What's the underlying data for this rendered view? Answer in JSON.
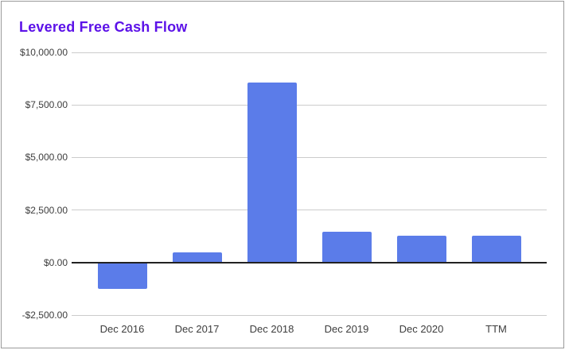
{
  "window": {
    "frame_border_color": "#9a9a9a",
    "background_color": "#ffffff"
  },
  "chart_data": {
    "type": "bar",
    "title": "Levered Free Cash Flow",
    "title_color": "#5c12e8",
    "xlabel": "",
    "ylabel": "",
    "categories": [
      "Dec 2016",
      "Dec 2017",
      "Dec 2018",
      "Dec 2019",
      "Dec 2020",
      "TTM"
    ],
    "values": [
      -1250,
      500,
      8550,
      1450,
      1280,
      1290
    ],
    "ylim": [
      -2500,
      10000
    ],
    "grid": true,
    "legend": "none",
    "y_ticks": [
      {
        "value": 10000,
        "label": "$10,000.00"
      },
      {
        "value": 7500,
        "label": "$7,500.00"
      },
      {
        "value": 5000,
        "label": "$5,000.00"
      },
      {
        "value": 2500,
        "label": "$2,500.00"
      },
      {
        "value": 0,
        "label": "$0.00"
      },
      {
        "value": -2500,
        "label": "-$2,500.00"
      }
    ],
    "bar_color": "#5b7ce9",
    "gridline_color": "#cccccc",
    "zero_line_color": "#222222",
    "axis_label_color": "#3d3d3d"
  }
}
